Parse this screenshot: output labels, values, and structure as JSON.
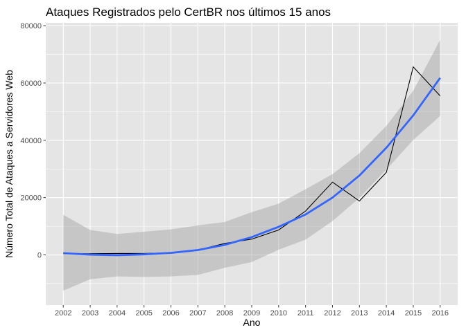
{
  "chart_data": {
    "type": "line",
    "title": "Ataques Registrados pelo CertBR nos últimos 15 anos",
    "xlabel": "Ano",
    "ylabel": "Número Total de Ataques a Servidores Web",
    "x": [
      2002,
      2003,
      2004,
      2005,
      2006,
      2007,
      2008,
      2009,
      2010,
      2011,
      2012,
      2013,
      2014,
      2015,
      2016
    ],
    "x_tick_labels": [
      "2002",
      "2003",
      "2004",
      "2005",
      "2006",
      "2007",
      "2008",
      "2009",
      "2010",
      "2011",
      "2012",
      "2013",
      "2014",
      "2015",
      "2016"
    ],
    "y_ticks": [
      0,
      20000,
      40000,
      60000,
      80000
    ],
    "y_tick_labels": [
      "0",
      "20000",
      "40000",
      "60000",
      "80000"
    ],
    "xlim": [
      2001.35,
      2016.65
    ],
    "ylim": [
      -17500,
      81000
    ],
    "grid": true,
    "series": [
      {
        "role": "observed",
        "color": "#000000",
        "values": [
          500,
          400,
          500,
          500,
          700,
          1700,
          4000,
          5500,
          8700,
          15300,
          25400,
          18800,
          28800,
          65600,
          55500
        ]
      },
      {
        "role": "smooth",
        "color": "#3366ff",
        "values": [
          600,
          100,
          -100,
          200,
          700,
          1700,
          3500,
          6200,
          9800,
          14100,
          20000,
          27700,
          37400,
          48700,
          61800
        ]
      }
    ],
    "confidence_band": {
      "color": "#999999",
      "lower": [
        -12500,
        -8500,
        -7500,
        -7700,
        -7500,
        -7000,
        -4500,
        -2500,
        1800,
        5300,
        11800,
        19900,
        29800,
        40100,
        48500
      ],
      "upper": [
        14000,
        8700,
        7300,
        8100,
        8900,
        10300,
        11500,
        14900,
        17900,
        22900,
        28200,
        35500,
        45000,
        57300,
        75100
      ]
    },
    "panel_background": "#e5e5e5",
    "grid_color": "#ffffff"
  }
}
